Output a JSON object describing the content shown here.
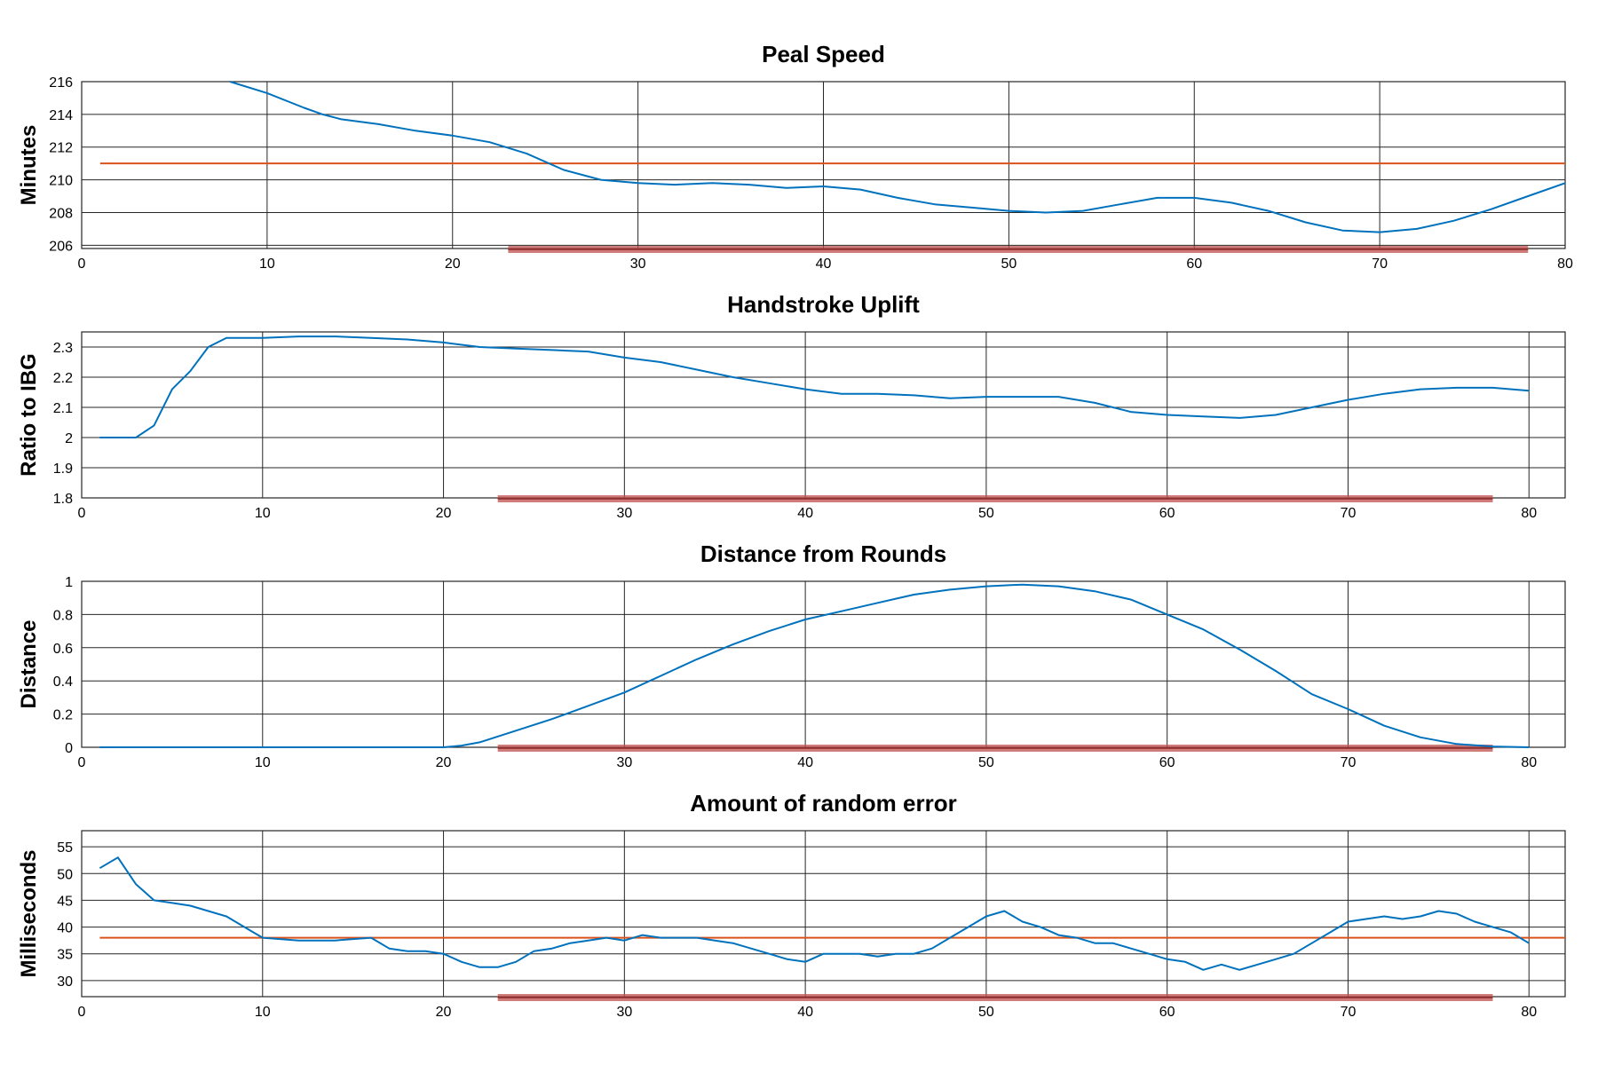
{
  "colors": {
    "series": "#0072bd",
    "reference": "#d95319",
    "highlight": "#c0504d"
  },
  "chart_data": [
    {
      "type": "line",
      "title": "Peal Speed",
      "ylabel": "Minutes",
      "xlabel": "",
      "xlim": [
        0,
        80
      ],
      "ylim": [
        205.8,
        216
      ],
      "xticks": [
        0,
        10,
        20,
        30,
        40,
        50,
        60,
        70,
        80
      ],
      "yticks": [
        206,
        208,
        210,
        212,
        214,
        216
      ],
      "grid": true,
      "reference_line": 211,
      "highlight_range": [
        23,
        78
      ],
      "series": [
        {
          "x": [
            8,
            10,
            12,
            13,
            14,
            16,
            18,
            20,
            22,
            24,
            26,
            28,
            30,
            32,
            34,
            36,
            38,
            40,
            42,
            44,
            46,
            48,
            50,
            52,
            54,
            56,
            58,
            60,
            62,
            64,
            66,
            68,
            70,
            72,
            74,
            76,
            78,
            80
          ],
          "values": [
            216,
            215.3,
            214.4,
            214.0,
            213.7,
            213.4,
            213.0,
            212.7,
            212.3,
            211.6,
            210.6,
            210.0,
            209.8,
            209.7,
            209.8,
            209.7,
            209.5,
            209.6,
            209.4,
            208.9,
            208.5,
            208.3,
            208.1,
            208.0,
            208.1,
            208.5,
            208.9,
            208.9,
            208.6,
            208.1,
            207.4,
            206.9,
            206.8,
            207.0,
            207.5,
            208.2,
            209.0,
            209.8
          ]
        }
      ]
    },
    {
      "type": "line",
      "title": "Handstroke Uplift",
      "ylabel": "Ratio to IBG",
      "xlabel": "",
      "xlim": [
        0,
        82
      ],
      "ylim": [
        1.8,
        2.35
      ],
      "xticks": [
        0,
        10,
        20,
        30,
        40,
        50,
        60,
        70,
        80
      ],
      "yticks": [
        1.8,
        1.9,
        2,
        2.1,
        2.2,
        2.3
      ],
      "grid": true,
      "highlight_range": [
        23,
        78
      ],
      "series": [
        {
          "x": [
            1,
            2,
            3,
            4,
            5,
            6,
            7,
            8,
            10,
            12,
            14,
            16,
            18,
            20,
            22,
            24,
            26,
            28,
            30,
            32,
            34,
            36,
            38,
            40,
            42,
            44,
            46,
            48,
            50,
            52,
            54,
            56,
            58,
            60,
            62,
            64,
            66,
            68,
            70,
            72,
            74,
            76,
            78,
            80
          ],
          "values": [
            2.0,
            2.0,
            2.0,
            2.04,
            2.16,
            2.22,
            2.3,
            2.33,
            2.33,
            2.335,
            2.335,
            2.33,
            2.325,
            2.315,
            2.3,
            2.295,
            2.29,
            2.285,
            2.265,
            2.25,
            2.225,
            2.2,
            2.18,
            2.16,
            2.145,
            2.145,
            2.14,
            2.13,
            2.135,
            2.135,
            2.135,
            2.115,
            2.085,
            2.075,
            2.07,
            2.065,
            2.075,
            2.1,
            2.125,
            2.145,
            2.16,
            2.165,
            2.165,
            2.155
          ]
        }
      ]
    },
    {
      "type": "line",
      "title": "Distance from Rounds",
      "ylabel": "Distance",
      "xlabel": "",
      "xlim": [
        0,
        82
      ],
      "ylim": [
        0,
        1
      ],
      "xticks": [
        0,
        10,
        20,
        30,
        40,
        50,
        60,
        70,
        80
      ],
      "yticks": [
        0,
        0.2,
        0.4,
        0.6,
        0.8,
        1
      ],
      "grid": true,
      "highlight_range": [
        23,
        78
      ],
      "series": [
        {
          "x": [
            1,
            5,
            10,
            15,
            20,
            21,
            22,
            24,
            26,
            28,
            30,
            32,
            34,
            36,
            38,
            40,
            42,
            44,
            46,
            48,
            50,
            52,
            54,
            56,
            58,
            60,
            62,
            64,
            66,
            68,
            70,
            72,
            74,
            76,
            78,
            80
          ],
          "values": [
            0,
            0,
            0,
            0,
            0,
            0.01,
            0.03,
            0.1,
            0.17,
            0.25,
            0.33,
            0.43,
            0.53,
            0.62,
            0.7,
            0.77,
            0.82,
            0.87,
            0.92,
            0.95,
            0.97,
            0.98,
            0.97,
            0.94,
            0.89,
            0.8,
            0.71,
            0.59,
            0.46,
            0.32,
            0.23,
            0.13,
            0.06,
            0.02,
            0.005,
            0
          ]
        }
      ]
    },
    {
      "type": "line",
      "title": "Amount of random error",
      "ylabel": "Milliseconds",
      "xlabel": "",
      "xlim": [
        0,
        82
      ],
      "ylim": [
        27,
        58
      ],
      "xticks": [
        0,
        10,
        20,
        30,
        40,
        50,
        60,
        70,
        80
      ],
      "yticks": [
        30,
        35,
        40,
        45,
        50,
        55
      ],
      "grid": true,
      "reference_line": 38,
      "highlight_range": [
        23,
        78
      ],
      "series": [
        {
          "x": [
            1,
            2,
            3,
            4,
            5,
            6,
            7,
            8,
            9,
            10,
            12,
            14,
            16,
            17,
            18,
            19,
            20,
            21,
            22,
            23,
            24,
            25,
            26,
            27,
            28,
            29,
            30,
            31,
            32,
            33,
            34,
            35,
            36,
            37,
            38,
            39,
            40,
            41,
            42,
            43,
            44,
            45,
            46,
            47,
            48,
            49,
            50,
            51,
            52,
            53,
            54,
            55,
            56,
            57,
            58,
            59,
            60,
            61,
            62,
            63,
            64,
            65,
            66,
            67,
            68,
            69,
            70,
            71,
            72,
            73,
            74,
            75,
            76,
            77,
            78,
            79,
            80
          ],
          "values": [
            51,
            53,
            48,
            45,
            44.5,
            44,
            43,
            42,
            40,
            38,
            37.5,
            37.5,
            38,
            36,
            35.5,
            35.5,
            35,
            33.5,
            32.5,
            32.5,
            33.5,
            35.5,
            36,
            37,
            37.5,
            38,
            37.5,
            38.5,
            38,
            38,
            38,
            37.5,
            37,
            36,
            35,
            34,
            33.5,
            35,
            35,
            35,
            34.5,
            35,
            35,
            36,
            38,
            40,
            42,
            43,
            41,
            40,
            38.5,
            38,
            37,
            37,
            36,
            35,
            34,
            33.5,
            32,
            33,
            32,
            33,
            34,
            35,
            37,
            39,
            41,
            41.5,
            42,
            41.5,
            42,
            43,
            42.5,
            41,
            40,
            39,
            37
          ]
        }
      ]
    }
  ]
}
